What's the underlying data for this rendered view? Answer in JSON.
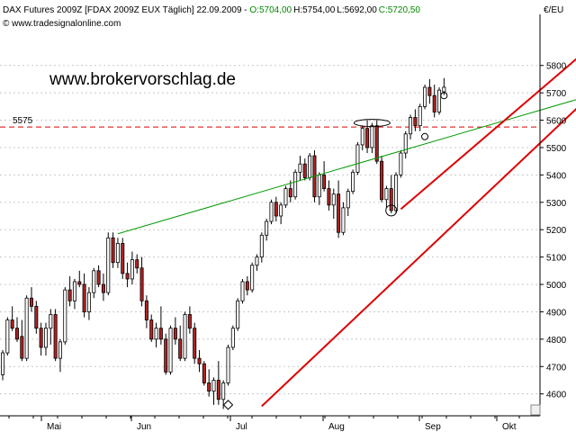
{
  "header": {
    "title_part1": "DAX Futures 2009Z [FDAX 2009Z EUX  Täglich] 22.09.2009 - ",
    "open": "O:5704,00",
    "high": "H:5754,00",
    "low": "L:5692,00",
    "close": "C:5720,50",
    "source": "© www.tradesignalonline.com",
    "currency": "€/EU"
  },
  "watermark": "www.brokervorschlag.de",
  "colors": {
    "up_candle": "#ffffff",
    "down_candle": "#b22222",
    "trend_green": "#009900",
    "trend_red": "#dd0000",
    "level_line": "#dd0000",
    "grid": "#c8c8c8",
    "ohlc_green": "#008800"
  },
  "chart_data": {
    "type": "candlestick",
    "title": "DAX Futures 2009Z [FDAX 2009Z EUX  Täglich] 22.09.2009",
    "ylim": [
      4520,
      5980
    ],
    "yticks": [
      4600,
      4700,
      4800,
      4900,
      5000,
      5100,
      5200,
      5300,
      5400,
      5500,
      5600,
      5700,
      5800
    ],
    "ytick_labels": [
      "4600",
      "4700",
      "4800",
      "4900",
      "5000",
      "5100",
      "5200",
      "5300",
      "5400",
      "5500",
      "5600",
      "5700",
      "5800"
    ],
    "x_months": [
      "Mai",
      "Jun",
      "Jul",
      "Aug",
      "Sep",
      "Okt"
    ],
    "grid": "horizontal dashed",
    "horizontal_level": {
      "value": 5575,
      "label": "5575"
    },
    "candles": [
      [
        4670,
        4760,
        4650,
        4750
      ],
      [
        4750,
        4880,
        4740,
        4870
      ],
      [
        4870,
        4920,
        4830,
        4840
      ],
      [
        4840,
        4880,
        4790,
        4800
      ],
      [
        4810,
        4870,
        4720,
        4730
      ],
      [
        4730,
        4960,
        4720,
        4950
      ],
      [
        4950,
        4990,
        4900,
        4920
      ],
      [
        4920,
        4940,
        4820,
        4840
      ],
      [
        4840,
        4860,
        4740,
        4770
      ],
      [
        4770,
        4860,
        4740,
        4840
      ],
      [
        4840,
        4910,
        4780,
        4890
      ],
      [
        4890,
        4910,
        4720,
        4730
      ],
      [
        4730,
        4800,
        4680,
        4790
      ],
      [
        4790,
        4990,
        4780,
        4980
      ],
      [
        4980,
        5030,
        4920,
        4940
      ],
      [
        4940,
        5020,
        4910,
        5010
      ],
      [
        5010,
        5050,
        4990,
        5000
      ],
      [
        5000,
        5040,
        4880,
        4900
      ],
      [
        4900,
        4990,
        4870,
        4970
      ],
      [
        4970,
        5060,
        4950,
        5050
      ],
      [
        5050,
        5070,
        4990,
        5000
      ],
      [
        5000,
        5040,
        4940,
        4970
      ],
      [
        4970,
        5190,
        4960,
        5170
      ],
      [
        5170,
        5190,
        5060,
        5080
      ],
      [
        5080,
        5170,
        5060,
        5150
      ],
      [
        5150,
        5170,
        5020,
        5040
      ],
      [
        5040,
        5080,
        4990,
        5020
      ],
      [
        5020,
        5120,
        5000,
        5090
      ],
      [
        5090,
        5110,
        5040,
        5060
      ],
      [
        5060,
        5100,
        4920,
        4940
      ],
      [
        4940,
        4960,
        4840,
        4870
      ],
      [
        4870,
        4890,
        4790,
        4800
      ],
      [
        4800,
        4860,
        4770,
        4840
      ],
      [
        4840,
        4920,
        4780,
        4800
      ],
      [
        4800,
        4820,
        4670,
        4680
      ],
      [
        4680,
        4850,
        4670,
        4840
      ],
      [
        4840,
        4880,
        4780,
        4800
      ],
      [
        4800,
        4850,
        4720,
        4730
      ],
      [
        4730,
        4900,
        4720,
        4890
      ],
      [
        4890,
        4920,
        4820,
        4840
      ],
      [
        4840,
        4860,
        4710,
        4730
      ],
      [
        4730,
        4760,
        4680,
        4710
      ],
      [
        4710,
        4720,
        4630,
        4640
      ],
      [
        4640,
        4690,
        4590,
        4610
      ],
      [
        4610,
        4660,
        4560,
        4650
      ],
      [
        4650,
        4720,
        4560,
        4580
      ],
      [
        4580,
        4650,
        4545,
        4640
      ],
      [
        4640,
        4780,
        4630,
        4770
      ],
      [
        4770,
        4850,
        4760,
        4840
      ],
      [
        4840,
        4950,
        4830,
        4940
      ],
      [
        4940,
        5020,
        4930,
        5010
      ],
      [
        5010,
        5030,
        4960,
        4980
      ],
      [
        4980,
        5080,
        4970,
        5070
      ],
      [
        5070,
        5110,
        5050,
        5100
      ],
      [
        5100,
        5190,
        5080,
        5180
      ],
      [
        5180,
        5240,
        5160,
        5230
      ],
      [
        5230,
        5310,
        5220,
        5300
      ],
      [
        5300,
        5320,
        5230,
        5250
      ],
      [
        5250,
        5300,
        5220,
        5290
      ],
      [
        5290,
        5360,
        5280,
        5350
      ],
      [
        5350,
        5380,
        5300,
        5320
      ],
      [
        5320,
        5420,
        5310,
        5410
      ],
      [
        5410,
        5470,
        5380,
        5440
      ],
      [
        5440,
        5460,
        5380,
        5390
      ],
      [
        5390,
        5480,
        5380,
        5470
      ],
      [
        5470,
        5490,
        5300,
        5320
      ],
      [
        5320,
        5410,
        5290,
        5400
      ],
      [
        5400,
        5450,
        5340,
        5350
      ],
      [
        5350,
        5380,
        5270,
        5290
      ],
      [
        5290,
        5350,
        5240,
        5330
      ],
      [
        5330,
        5380,
        5170,
        5190
      ],
      [
        5190,
        5300,
        5180,
        5280
      ],
      [
        5280,
        5350,
        5250,
        5340
      ],
      [
        5340,
        5420,
        5330,
        5410
      ],
      [
        5410,
        5520,
        5400,
        5510
      ],
      [
        5510,
        5580,
        5490,
        5570
      ],
      [
        5570,
        5600,
        5480,
        5500
      ],
      [
        5500,
        5590,
        5480,
        5580
      ],
      [
        5580,
        5600,
        5440,
        5450
      ],
      [
        5450,
        5470,
        5300,
        5310
      ],
      [
        5310,
        5360,
        5280,
        5350
      ],
      [
        5350,
        5400,
        5260,
        5270
      ],
      [
        5270,
        5410,
        5260,
        5400
      ],
      [
        5400,
        5490,
        5390,
        5480
      ],
      [
        5480,
        5560,
        5460,
        5550
      ],
      [
        5550,
        5620,
        5530,
        5610
      ],
      [
        5610,
        5640,
        5560,
        5580
      ],
      [
        5580,
        5660,
        5560,
        5650
      ],
      [
        5650,
        5730,
        5640,
        5720
      ],
      [
        5720,
        5750,
        5660,
        5690
      ],
      [
        5690,
        5730,
        5610,
        5630
      ],
      [
        5630,
        5720,
        5620,
        5710
      ],
      [
        5704,
        5754,
        5692,
        5720.5
      ]
    ],
    "trendlines": [
      {
        "name": "green-resistance",
        "from": [
          24,
          5185
        ],
        "to": [
          140,
          5780
        ],
        "color": "#009900"
      },
      {
        "name": "red-support-1",
        "from": [
          54,
          4555
        ],
        "to": [
          140,
          5980
        ],
        "color": "#dd0000"
      },
      {
        "name": "red-support-2",
        "from": [
          83,
          5275
        ],
        "to": [
          130,
          5980
        ],
        "color": "#dd0000"
      }
    ]
  }
}
